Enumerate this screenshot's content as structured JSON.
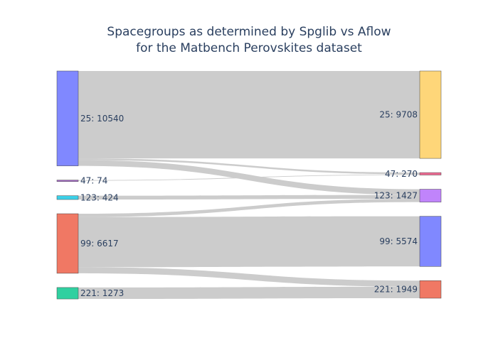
{
  "chart_data": {
    "type": "sankey",
    "title": [
      "Spacegroups as determined by Spglib vs Aflow",
      "for the Matbench Perovskites dataset"
    ],
    "left_nodes": [
      {
        "spacegroup": "25",
        "count": 10540,
        "label": "25: 10540",
        "color": "#8088ff"
      },
      {
        "spacegroup": "47",
        "count": 74,
        "label": "47: 74",
        "color": "#a667ca"
      },
      {
        "spacegroup": "123",
        "count": 424,
        "label": "123: 424",
        "color": "#3cd0e8"
      },
      {
        "spacegroup": "99",
        "count": 6617,
        "label": "99: 6617",
        "color": "#f07864"
      },
      {
        "spacegroup": "221",
        "count": 1273,
        "label": "221: 1273",
        "color": "#30d0a0"
      }
    ],
    "right_nodes": [
      {
        "spacegroup": "25",
        "count": 9708,
        "label": "25: 9708",
        "color": "#fed679"
      },
      {
        "spacegroup": "47",
        "count": 270,
        "label": "47: 270",
        "color": "#f06a93"
      },
      {
        "spacegroup": "123",
        "count": 1427,
        "label": "123: 1427",
        "color": "#c084fb"
      },
      {
        "spacegroup": "99",
        "count": 5574,
        "label": "99: 5574",
        "color": "#8088ff"
      },
      {
        "spacegroup": "221",
        "count": 1949,
        "label": "221: 1949",
        "color": "#f07864"
      }
    ],
    "links": [
      {
        "source": "25",
        "target": "25",
        "value": 9708
      },
      {
        "source": "25",
        "target": "47",
        "value": 196
      },
      {
        "source": "25",
        "target": "123",
        "value": 636
      },
      {
        "source": "47",
        "target": "47",
        "value": 74
      },
      {
        "source": "123",
        "target": "123",
        "value": 424
      },
      {
        "source": "99",
        "target": "123",
        "value": 367
      },
      {
        "source": "99",
        "target": "99",
        "value": 5574
      },
      {
        "source": "99",
        "target": "221",
        "value": 676
      },
      {
        "source": "221",
        "target": "221",
        "value": 1273
      }
    ],
    "link_color": "#cccccc"
  }
}
